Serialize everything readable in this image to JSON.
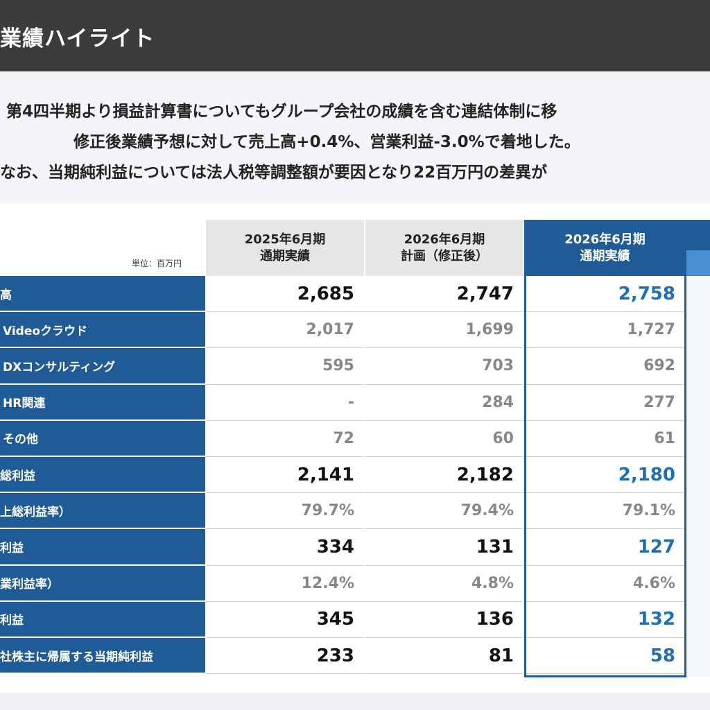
{
  "header": {
    "title": "業績ハイライト"
  },
  "summary": {
    "lines": [
      "第4四半期より損益計算書についてもグループ会社の成績を含む連結体制に移",
      "修正後業績予想に対して売上高+0.4%、営業利益-3.0%で着地した。",
      "なお、当期純利益については法人税等調整額が要因となり22百万円の差異が"
    ]
  },
  "table": {
    "unit": "単位：百万円",
    "columns": [
      {
        "line1": "2025年6月期",
        "line2": "通期実績"
      },
      {
        "line1": "2026年6月期",
        "line2": "計画（修正後）"
      },
      {
        "line1": "2026年6月期",
        "line2": "通期実績"
      }
    ],
    "rows": [
      {
        "label": "高",
        "values": [
          "2,685",
          "2,747",
          "2,758"
        ],
        "type": "major"
      },
      {
        "label": "Videoクラウド",
        "values": [
          "2,017",
          "1,699",
          "1,727"
        ],
        "type": "minor"
      },
      {
        "label": "DXコンサルティング",
        "values": [
          "595",
          "703",
          "692"
        ],
        "type": "minor"
      },
      {
        "label": "HR関連",
        "values": [
          "-",
          "284",
          "277"
        ],
        "type": "minor"
      },
      {
        "label": "その他",
        "values": [
          "72",
          "60",
          "61"
        ],
        "type": "minor"
      },
      {
        "label": "総利益",
        "values": [
          "2,141",
          "2,182",
          "2,180"
        ],
        "type": "major"
      },
      {
        "label": "上総利益率）",
        "values": [
          "79.7%",
          "79.4%",
          "79.1%"
        ],
        "type": "minor"
      },
      {
        "label": "利益",
        "values": [
          "334",
          "131",
          "127"
        ],
        "type": "major"
      },
      {
        "label": "業利益率）",
        "values": [
          "12.4%",
          "4.8%",
          "4.6%"
        ],
        "type": "minor"
      },
      {
        "label": "利益",
        "values": [
          "345",
          "136",
          "132"
        ],
        "type": "major"
      },
      {
        "label": "社株主に帰属する当期純利益",
        "values": [
          "233",
          "81",
          "58"
        ],
        "type": "major"
      }
    ]
  },
  "colors": {
    "header_bg": "#3c3c3c",
    "label_bg": "#1f5b96",
    "accent": "#1f6fb5"
  }
}
